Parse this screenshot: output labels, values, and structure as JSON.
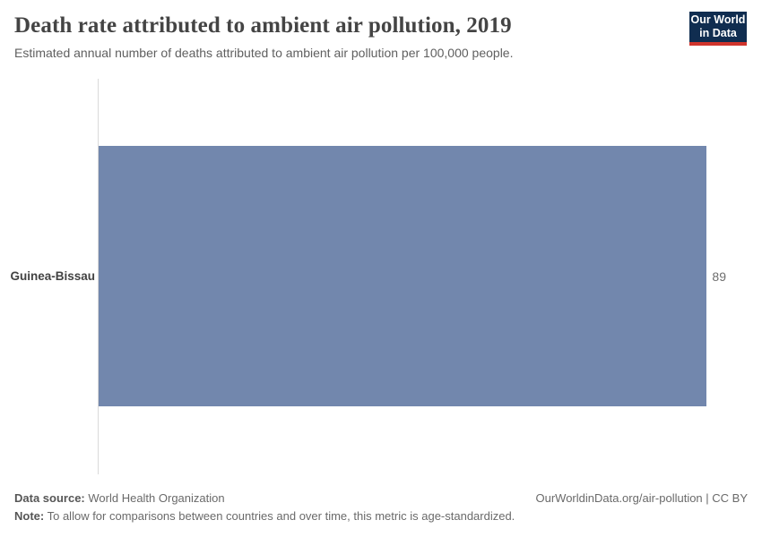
{
  "header": {
    "title": "Death rate attributed to ambient air pollution, 2019",
    "subtitle": "Estimated annual number of deaths attributed to ambient air pollution per 100,000 people.",
    "logo": {
      "line1": "Our World",
      "line2": "in Data",
      "background_color": "#102d50",
      "stripe_color": "#d0342c"
    }
  },
  "chart_data": {
    "type": "bar",
    "orientation": "horizontal",
    "title": "Death rate attributed to ambient air pollution, 2019",
    "categories": [
      "Guinea-Bissau"
    ],
    "values": [
      89
    ],
    "value_labels": [
      "89"
    ],
    "xlabel": "",
    "ylabel": "",
    "xlim": [
      0,
      89
    ],
    "bar_color": "#7287ad",
    "grid": false,
    "legend": "none"
  },
  "footer": {
    "data_source_label": "Data source:",
    "data_source_value": "World Health Organization",
    "note_label": "Note:",
    "note_value": "To allow for comparisons between countries and over time, this metric is age-standardized.",
    "right_text": "OurWorldinData.org/air-pollution | CC BY"
  }
}
